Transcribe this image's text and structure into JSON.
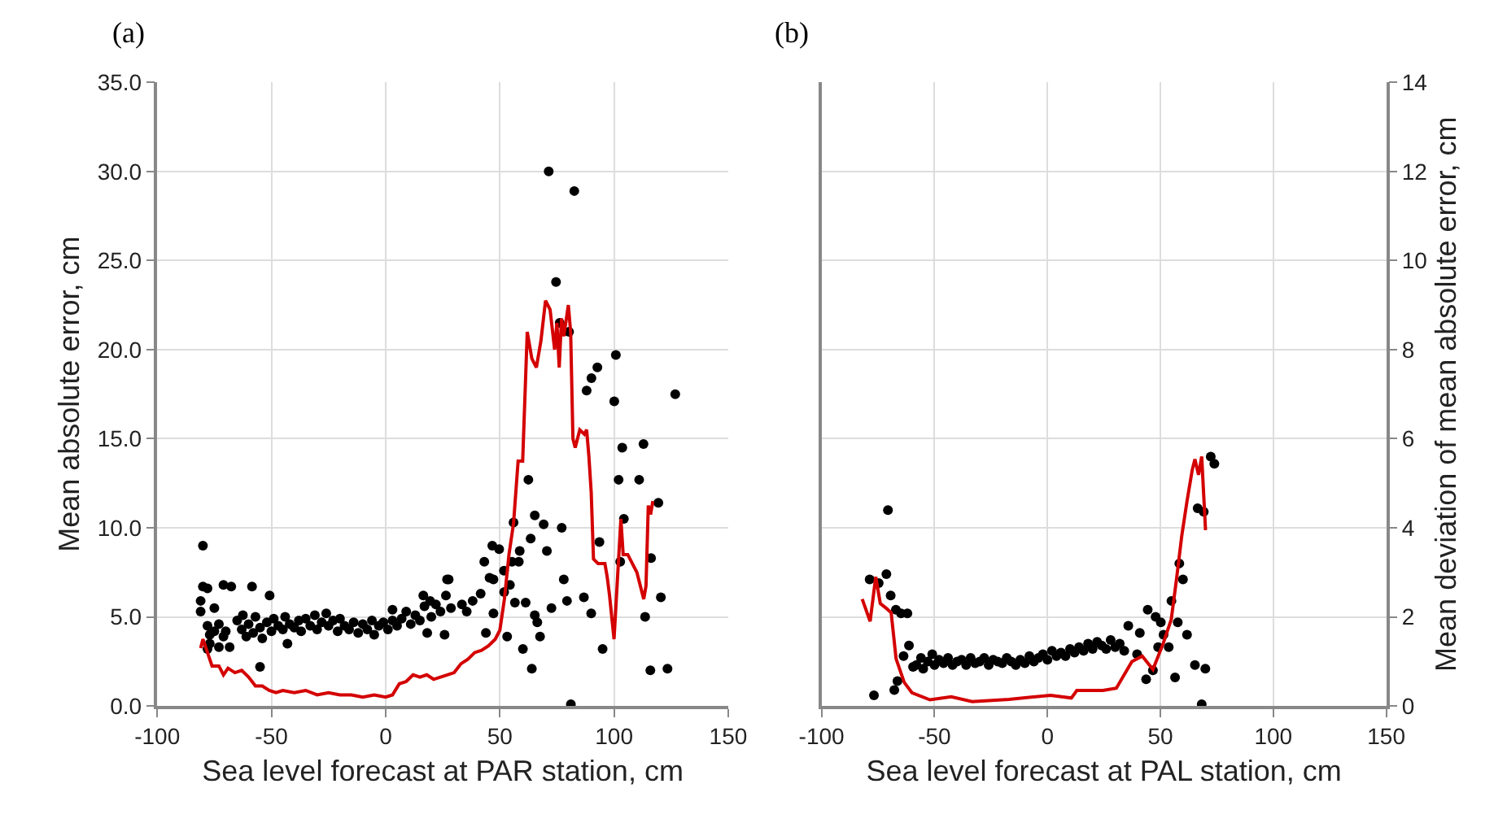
{
  "chart_data": [
    {
      "type": "scatter",
      "title": "(a)",
      "xlabel": "Sea level forecast at PAR station, cm",
      "ylabel": "Mean absolute error, cm",
      "xlim": [
        -100,
        150
      ],
      "xticks": [
        -100,
        -50,
        0,
        50,
        100,
        150
      ],
      "ylim": [
        0,
        35
      ],
      "yticks": [
        {
          "value": 0,
          "label": "0.0"
        },
        {
          "value": 5,
          "label": "5.0"
        },
        {
          "value": 10,
          "label": "10.0"
        },
        {
          "value": 15,
          "label": "15.0"
        },
        {
          "value": 20,
          "label": "20.0"
        },
        {
          "value": 25,
          "label": "25.0"
        },
        {
          "value": 30,
          "label": "30.0"
        },
        {
          "value": 35,
          "label": "35.0"
        }
      ],
      "y2lim": [
        0,
        14
      ],
      "grid": true,
      "series": [
        {
          "marker": "circle",
          "color": "#000000",
          "x": [
            -81,
            -81,
            -80,
            -80,
            -78,
            -78,
            -78,
            -77,
            -77,
            -75,
            -75,
            -73,
            -73,
            -71,
            -71,
            -70,
            -68.3,
            -67.6,
            -62.5,
            -58.5,
            -55,
            -50.8,
            -43,
            -65,
            -63,
            -61,
            -60,
            -58,
            -57,
            -55,
            -54,
            -52,
            -50,
            -49,
            -47,
            -45,
            -44,
            -42,
            -40,
            -38,
            -37,
            -35,
            -33,
            -31,
            -30,
            -28,
            -26,
            -25,
            -23,
            -21,
            -20,
            -18,
            -16,
            -14,
            -12,
            -10,
            -8,
            -6,
            -5,
            -3,
            -1,
            1,
            3,
            3,
            5,
            7,
            9,
            11,
            13,
            15,
            16.5,
            17,
            18.2,
            19.5,
            20,
            22,
            24,
            25.8,
            26.4,
            26.9,
            27.6,
            28.6,
            33.4,
            35.5,
            38.1,
            41.6,
            43.2,
            43.9,
            45.5,
            46.7,
            47.2,
            47.2,
            49.7,
            51.8,
            51.9,
            53.2,
            54.4,
            55.3,
            56,
            56.6,
            58.3,
            58.7,
            60.1,
            61.3,
            62.5,
            63.5,
            64,
            65.3,
            65.3,
            66.4,
            67.6,
            69.2,
            70.6,
            71.4,
            72.6,
            74.6,
            76.2,
            77.1,
            78,
            79.4,
            80.3,
            81.1,
            82.6,
            86.8,
            88,
            90,
            90.1,
            92.7,
            93.6,
            95,
            100.1,
            100.8,
            102,
            102.7,
            103.6,
            104.3,
            111,
            112.9,
            113.6,
            115.9,
            116.2,
            119.4,
            120.5,
            123.4,
            126.8
          ],
          "values": [
            5.3,
            5.9,
            9.0,
            6.7,
            6.6,
            4.5,
            3.2,
            4.0,
            3.5,
            5.5,
            4.2,
            3.3,
            4.6,
            3.9,
            6.8,
            4.2,
            3.3,
            6.7,
            5.1,
            6.7,
            2.2,
            6.2,
            3.5,
            4.8,
            4.3,
            3.9,
            4.6,
            4.1,
            5.0,
            4.4,
            3.8,
            4.7,
            4.2,
            4.9,
            4.5,
            4.3,
            5.0,
            4.6,
            4.4,
            4.8,
            4.2,
            4.9,
            4.5,
            5.1,
            4.3,
            4.7,
            5.2,
            4.5,
            4.8,
            4.2,
            4.9,
            4.5,
            4.3,
            4.7,
            4.1,
            4.6,
            4.3,
            4.8,
            4.0,
            4.5,
            4.7,
            4.3,
            4.8,
            5.4,
            4.5,
            4.9,
            5.3,
            4.6,
            5.1,
            4.8,
            6.2,
            5.6,
            4.1,
            5.9,
            5.0,
            5.7,
            5.3,
            4.0,
            6.2,
            7.1,
            7.1,
            5.5,
            5.7,
            5.3,
            5.9,
            6.3,
            8.1,
            4.1,
            7.2,
            9.0,
            7.1,
            5.2,
            8.8,
            7.6,
            6.4,
            3.9,
            6.8,
            8.1,
            10.3,
            5.8,
            8.1,
            8.7,
            3.2,
            5.8,
            12.7,
            9.4,
            2.1,
            10.7,
            5.1,
            4.7,
            3.9,
            10.2,
            8.7,
            30.0,
            5.5,
            23.8,
            21.5,
            10.0,
            7.1,
            5.9,
            21.0,
            0.1,
            28.9,
            6.1,
            17.7,
            5.2,
            18.4,
            19.0,
            9.2,
            3.2,
            17.1,
            19.7,
            12.7,
            8.1,
            14.5,
            10.5,
            12.7,
            14.7,
            5.0,
            2.0,
            8.3,
            11.4,
            6.1,
            2.1,
            17.5
          ]
        },
        {
          "type": "line",
          "axis": "y2",
          "line_style": "solid",
          "color": "#d40000",
          "x": [
            -81,
            -80,
            -78,
            -76,
            -73,
            -71,
            -69,
            -66,
            -63,
            -60,
            -57,
            -54,
            -51,
            -48,
            -45,
            -40,
            -35,
            -30,
            -25,
            -20,
            -15,
            -10,
            -5,
            0,
            3,
            6,
            9,
            12,
            15,
            18,
            21,
            24,
            27,
            30,
            33,
            36,
            39,
            42,
            45,
            48,
            50,
            52,
            54,
            56,
            58,
            60,
            62,
            64,
            66,
            68,
            70,
            72,
            74,
            75,
            76,
            77,
            78,
            80,
            81,
            82,
            83,
            85,
            87,
            88,
            89,
            90,
            91,
            93,
            96,
            97,
            98,
            99,
            100,
            101,
            103,
            104,
            106,
            108,
            110,
            112,
            113,
            114,
            115,
            116,
            117
          ],
          "values": [
            1.3,
            1.5,
            1.2,
            0.9,
            0.9,
            0.7,
            0.85,
            0.75,
            0.8,
            0.65,
            0.45,
            0.45,
            0.35,
            0.3,
            0.35,
            0.3,
            0.35,
            0.25,
            0.3,
            0.25,
            0.25,
            0.2,
            0.25,
            0.2,
            0.25,
            0.5,
            0.55,
            0.7,
            0.65,
            0.7,
            0.6,
            0.65,
            0.7,
            0.75,
            0.95,
            1.05,
            1.2,
            1.25,
            1.35,
            1.5,
            1.7,
            2.4,
            3.4,
            4.1,
            5.5,
            5.5,
            8.4,
            7.8,
            7.6,
            8.2,
            9.1,
            8.9,
            8.0,
            8.6,
            7.6,
            8.7,
            8.3,
            9.0,
            8.4,
            6.0,
            5.8,
            6.2,
            6.1,
            6.2,
            5.6,
            4.8,
            3.3,
            3.2,
            3.2,
            2.9,
            2.5,
            2.0,
            1.5,
            2.4,
            4.2,
            3.4,
            3.4,
            3.2,
            3.0,
            2.6,
            2.4,
            2.7,
            4.5,
            4.3,
            4.6
          ]
        }
      ]
    },
    {
      "type": "scatter",
      "title": "(b)",
      "xlabel": "Sea level forecast at PAL station, cm",
      "y2label": "Mean deviation of mean absolute error, cm",
      "xlim": [
        -100,
        150
      ],
      "xticks": [
        -100,
        -50,
        0,
        50,
        100,
        150
      ],
      "ylim": [
        0,
        35
      ],
      "y2lim": [
        0,
        14
      ],
      "y2ticks": [
        0,
        2,
        4,
        6,
        8,
        10,
        12,
        14
      ],
      "grid": true,
      "series": [
        {
          "marker": "circle",
          "color": "#000000",
          "x": [
            -78.7,
            -76.8,
            -74.7,
            -71.3,
            -70.6,
            -69.4,
            -67.8,
            -67.1,
            -66.4,
            -64.8,
            -63.7,
            -62,
            -61.3,
            -59.5,
            -58,
            -56,
            -55,
            -53,
            -51,
            -50,
            -48,
            -46,
            -44,
            -42,
            -40,
            -38,
            -36,
            -34,
            -32,
            -30,
            -28,
            -26,
            -24,
            -22,
            -20,
            -18,
            -16,
            -14,
            -12,
            -10,
            -8,
            -6,
            -4,
            -2,
            0,
            2,
            4,
            6,
            8,
            10,
            12,
            14,
            16,
            18,
            20,
            22,
            24,
            26,
            28,
            30,
            32,
            34,
            35.8,
            39.7,
            40.9,
            43.7,
            44.4,
            46.7,
            47.9,
            49,
            50.2,
            51.4,
            53.7,
            54.9,
            56.5,
            57.7,
            58.4,
            60,
            61.8,
            65.3,
            66.5,
            68.3,
            69.2,
            69.9,
            72.3,
            73.9
          ],
          "values": [
            7.1,
            0.6,
            6.9,
            7.4,
            11.0,
            6.2,
            0.9,
            5.4,
            1.4,
            5.2,
            2.8,
            5.2,
            3.4,
            2.2,
            2.3,
            2.7,
            2.1,
            2.5,
            2.9,
            2.3,
            2.6,
            2.4,
            2.7,
            2.3,
            2.5,
            2.6,
            2.3,
            2.7,
            2.4,
            2.5,
            2.7,
            2.3,
            2.6,
            2.5,
            2.4,
            2.7,
            2.5,
            2.3,
            2.6,
            2.4,
            2.8,
            2.5,
            2.7,
            2.9,
            2.6,
            3.1,
            2.8,
            3.0,
            2.8,
            3.2,
            3.0,
            3.3,
            3.1,
            3.5,
            3.2,
            3.6,
            3.4,
            3.2,
            3.7,
            3.3,
            3.5,
            3.1,
            4.5,
            2.9,
            4.1,
            1.5,
            5.4,
            2.0,
            5.0,
            3.3,
            4.7,
            4.0,
            3.3,
            5.9,
            1.6,
            4.7,
            8.0,
            7.1,
            4.0,
            2.3,
            11.1,
            0.1,
            10.9,
            2.1,
            14.0,
            13.6
          ]
        },
        {
          "type": "line",
          "axis": "y2",
          "line_style": "solid",
          "color": "#d40000",
          "x": [
            -82,
            -78.5,
            -76,
            -74,
            -71.5,
            -69.2,
            -67,
            -63.4,
            -60,
            -52,
            -42.6,
            -33.3,
            -17,
            1.4,
            10.6,
            13,
            24.6,
            30.5,
            37.4,
            42,
            46.7,
            51.3,
            54.8,
            57.1,
            59.5,
            61.8,
            64.1,
            65.3,
            66.9,
            68.3,
            70
          ],
          "values": [
            2.4,
            1.9,
            2.9,
            2.3,
            2.2,
            2.1,
            1.06,
            0.53,
            0.3,
            0.14,
            0.21,
            0.1,
            0.15,
            0.24,
            0.18,
            0.35,
            0.35,
            0.4,
            1.0,
            1.12,
            0.82,
            1.41,
            1.94,
            2.83,
            3.83,
            4.6,
            5.3,
            5.54,
            5.19,
            5.6,
            3.95
          ]
        }
      ]
    }
  ]
}
